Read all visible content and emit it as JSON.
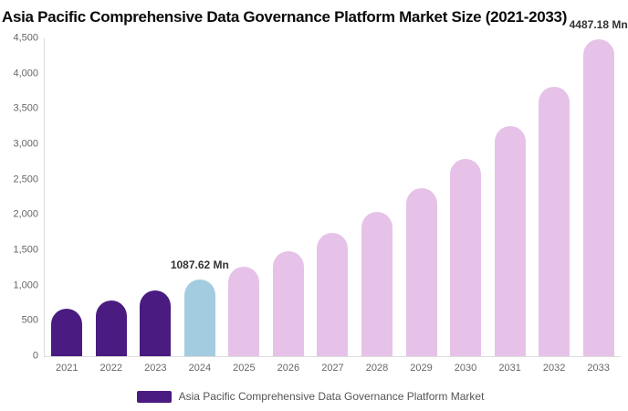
{
  "title": "Asia Pacific Comprehensive Data Governance Platform Market Size (2021-2033)",
  "legend": {
    "label": "Asia Pacific Comprehensive Data Governance Platform Market",
    "swatch_color": "#4A1B80"
  },
  "colors": {
    "historical_bar": "#4A1B80",
    "base_year_bar": "#A4CCE0",
    "forecast_bar": "#E6C2E8",
    "axis_line": "#dddddd",
    "tick_text": "#666666",
    "data_label_text": "#333333"
  },
  "chart_data": {
    "type": "bar",
    "title": "Asia Pacific Comprehensive Data Governance Platform Market Size (2021-2033)",
    "categories": [
      "2021",
      "2022",
      "2023",
      "2024",
      "2025",
      "2026",
      "2027",
      "2028",
      "2029",
      "2030",
      "2031",
      "2032",
      "2033"
    ],
    "values": [
      678,
      794,
      930,
      1087.62,
      1272,
      1489,
      1742,
      2038,
      2385,
      2790,
      3265,
      3820,
      4487.18
    ],
    "series_name": "Asia Pacific Comprehensive Data Governance Platform Market",
    "unit": "Mn",
    "xlabel": "",
    "ylabel": "",
    "ylim": [
      0,
      4500
    ],
    "grid": false,
    "legend_position": "bottom",
    "y_ticks": [
      {
        "value": 0,
        "label": "0"
      },
      {
        "value": 500,
        "label": "500"
      },
      {
        "value": 1000,
        "label": "1,000"
      },
      {
        "value": 1500,
        "label": "1,500"
      },
      {
        "value": 2000,
        "label": "2,000"
      },
      {
        "value": 2500,
        "label": "2,500"
      },
      {
        "value": 3000,
        "label": "3,000"
      },
      {
        "value": 3500,
        "label": "3,500"
      },
      {
        "value": 4000,
        "label": "4,000"
      },
      {
        "value": 4500,
        "label": "4,500"
      }
    ],
    "bar_colors": [
      "#4A1B80",
      "#4A1B80",
      "#4A1B80",
      "#A4CCE0",
      "#E6C2E8",
      "#E6C2E8",
      "#E6C2E8",
      "#E6C2E8",
      "#E6C2E8",
      "#E6C2E8",
      "#E6C2E8",
      "#E6C2E8",
      "#E6C2E8"
    ],
    "point_labels": [
      {
        "category": "2024",
        "text": "1087.62 Mn"
      },
      {
        "category": "2033",
        "text": "4487.18 Mn"
      }
    ]
  }
}
